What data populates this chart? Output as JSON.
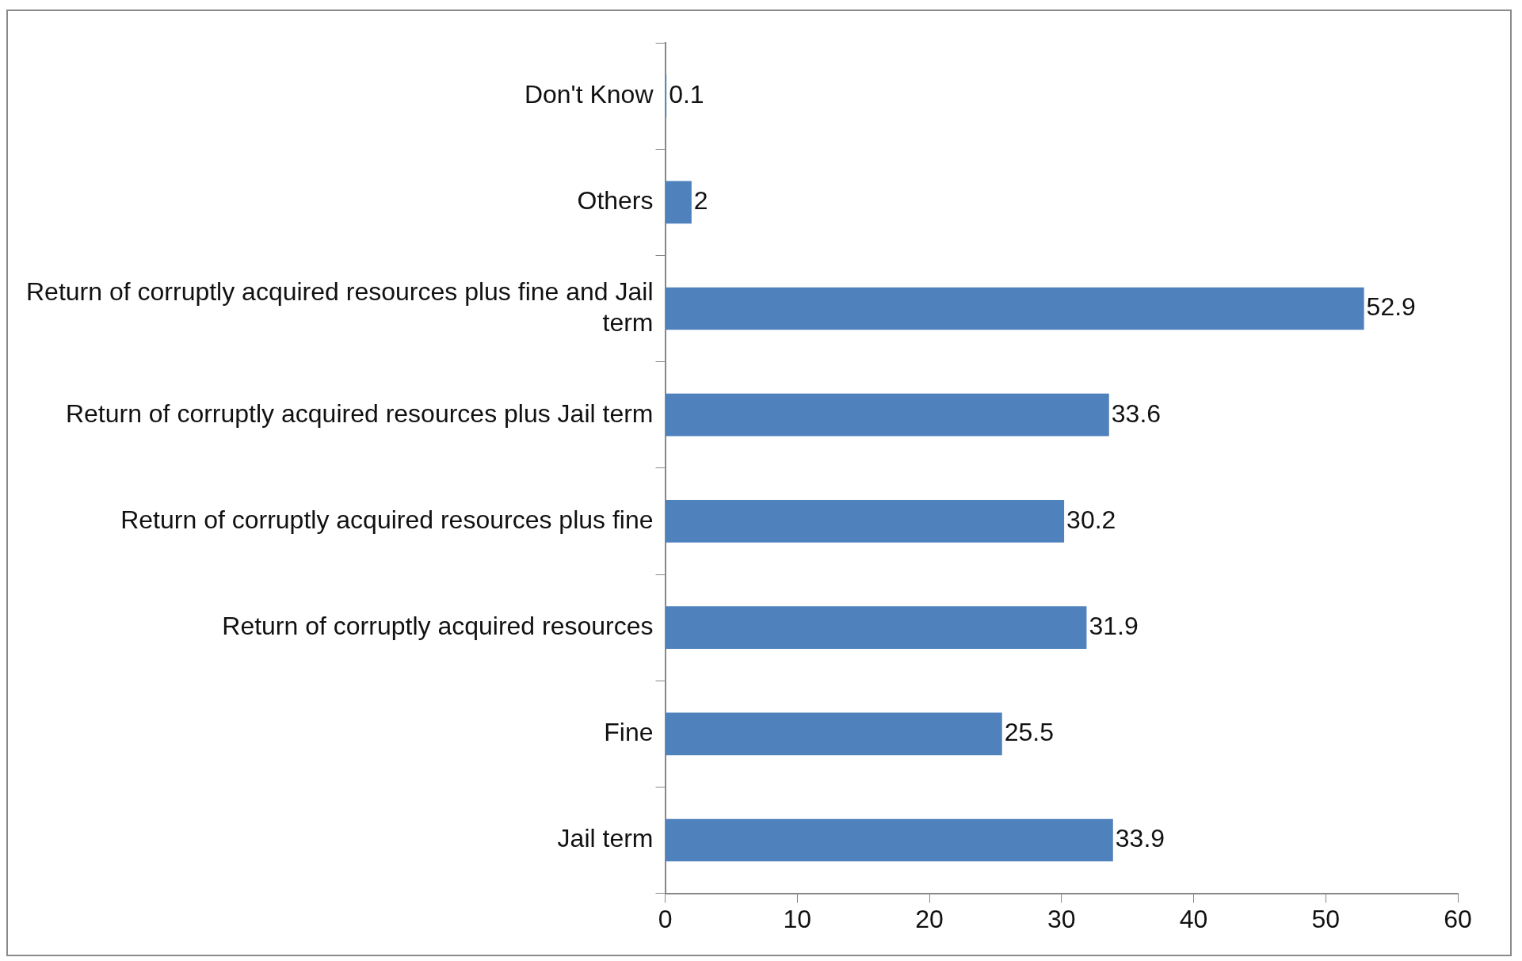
{
  "chart_data": {
    "type": "bar",
    "orientation": "horizontal",
    "categories": [
      "Don't Know",
      "Others",
      "Return of corruptly acquired resources plus fine and Jail term",
      "Return of corruptly acquired resources plus Jail term",
      "Return of corruptly acquired resources plus fine",
      "Return of corruptly acquired resources",
      "Fine",
      "Jail term"
    ],
    "values": [
      0.1,
      2,
      52.9,
      33.6,
      30.2,
      31.9,
      25.5,
      33.9
    ],
    "color": "#4f81bd",
    "xlim": [
      0,
      60
    ],
    "xticks": [
      0,
      10,
      20,
      30,
      40,
      50,
      60
    ],
    "data_labels": true,
    "grid": false,
    "legend": false
  }
}
